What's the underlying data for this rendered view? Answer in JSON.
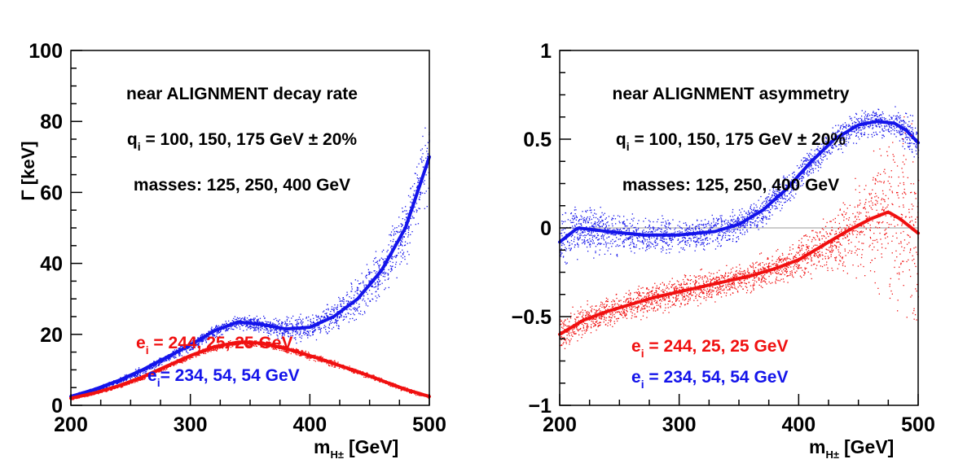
{
  "figure": {
    "colors": {
      "red": "#f01010",
      "blue": "#1414ea",
      "axis": "#000000",
      "zero_line": "#9a9a9a"
    }
  },
  "chart_data": [
    {
      "type": "scatter",
      "panel": "left",
      "title": "",
      "xlabel": "m",
      "xlabel_sub": "H±",
      "xlabel_unit": "[GeV]",
      "ylabel": "Γ [keV]",
      "xlim": [
        200,
        500
      ],
      "ylim": [
        0,
        100
      ],
      "xticks": [
        200,
        300,
        400,
        500
      ],
      "yticks": [
        0,
        20,
        40,
        60,
        80,
        100
      ],
      "x_tick_labels": [
        "200",
        "300",
        "400",
        "500"
      ],
      "y_tick_labels": [
        "0",
        "20",
        "40",
        "60",
        "80",
        "100"
      ],
      "annotations": {
        "line1": "near ALIGNMENT decay rate",
        "line2_pre": "q",
        "line2_sub": "i",
        "line2_post": " = 100, 150, 175 GeV ± 20%",
        "line3": "masses: 125, 250, 400 GeV"
      },
      "legend": [
        {
          "pre": "e",
          "sub": "i",
          "post": " = 244, 25, 25 GeV",
          "color": "red"
        },
        {
          "pre": "e",
          "sub": "i",
          "post": "= 234, 54, 54 GeV",
          "color": "blue"
        }
      ],
      "series": [
        {
          "name": "e_i = 234, 54, 54 GeV",
          "color": "blue",
          "x": [
            200,
            220,
            240,
            260,
            280,
            300,
            320,
            340,
            360,
            380,
            400,
            420,
            440,
            460,
            480,
            500
          ],
          "y": [
            2.5,
            4.5,
            7.0,
            10.0,
            13.5,
            17.0,
            21.0,
            23.5,
            22.8,
            21.5,
            22.0,
            25.0,
            30.0,
            38.0,
            50.0,
            70.0
          ],
          "spread": [
            0.3,
            0.5,
            0.7,
            0.9,
            1.0,
            1.2,
            1.3,
            1.6,
            2.0,
            2.5,
            3.0,
            3.8,
            4.8,
            6.0,
            7.5,
            10.0
          ]
        },
        {
          "name": "e_i = 244, 25, 25 GeV",
          "color": "red",
          "x": [
            200,
            220,
            240,
            260,
            280,
            300,
            320,
            340,
            360,
            380,
            400,
            420,
            440,
            460,
            480,
            500
          ],
          "y": [
            2.0,
            3.5,
            5.5,
            8.0,
            11.0,
            14.0,
            16.5,
            17.8,
            17.5,
            16.0,
            14.0,
            11.8,
            9.5,
            7.0,
            4.5,
            2.5
          ],
          "spread": [
            0.3,
            0.3,
            0.4,
            0.5,
            0.6,
            0.6,
            0.7,
            0.8,
            0.8,
            0.8,
            0.8,
            0.7,
            0.6,
            0.5,
            0.5,
            0.4
          ]
        }
      ]
    },
    {
      "type": "scatter",
      "panel": "right",
      "title": "",
      "xlabel": "m",
      "xlabel_sub": "H±",
      "xlabel_unit": "[GeV]",
      "ylabel": "",
      "xlim": [
        200,
        500
      ],
      "ylim": [
        -1,
        1
      ],
      "xticks": [
        200,
        300,
        400,
        500
      ],
      "yticks": [
        -1,
        -0.5,
        0,
        0.5,
        1
      ],
      "x_tick_labels": [
        "200",
        "300",
        "400",
        "500"
      ],
      "y_tick_labels": [
        "−1",
        "−0.5",
        "0",
        "0.5",
        "1"
      ],
      "annotations": {
        "line1": "near ALIGNMENT asymmetry",
        "line2_pre": "q",
        "line2_sub": "i",
        "line2_post": " = 100, 150, 175 GeV ± 20%",
        "line3": "masses: 125, 250, 400 GeV"
      },
      "legend": [
        {
          "pre": "e",
          "sub": "i",
          "post": " = 244, 25, 25 GeV",
          "color": "red"
        },
        {
          "pre": "e",
          "sub": "i",
          "post": " = 234, 54, 54 GeV",
          "color": "blue"
        }
      ],
      "series": [
        {
          "name": "e_i = 234, 54, 54 GeV",
          "color": "blue",
          "x": [
            200,
            215,
            240,
            270,
            300,
            330,
            350,
            370,
            390,
            410,
            430,
            450,
            465,
            480,
            490,
            500
          ],
          "y": [
            -0.08,
            0.0,
            -0.02,
            -0.04,
            -0.04,
            -0.02,
            0.02,
            0.1,
            0.22,
            0.37,
            0.5,
            0.58,
            0.6,
            0.59,
            0.55,
            0.48
          ],
          "spread": [
            0.12,
            0.12,
            0.1,
            0.08,
            0.07,
            0.07,
            0.07,
            0.07,
            0.07,
            0.07,
            0.07,
            0.07,
            0.07,
            0.07,
            0.08,
            0.09
          ]
        },
        {
          "name": "e_i = 244, 25, 25 GeV",
          "color": "red",
          "x": [
            200,
            220,
            240,
            260,
            280,
            300,
            320,
            340,
            360,
            380,
            400,
            420,
            440,
            460,
            475,
            485,
            500
          ],
          "y": [
            -0.6,
            -0.52,
            -0.47,
            -0.43,
            -0.39,
            -0.36,
            -0.33,
            -0.3,
            -0.27,
            -0.23,
            -0.18,
            -0.1,
            -0.02,
            0.05,
            0.09,
            0.05,
            -0.03
          ],
          "spread": [
            0.08,
            0.08,
            0.07,
            0.07,
            0.07,
            0.07,
            0.07,
            0.07,
            0.07,
            0.08,
            0.09,
            0.12,
            0.18,
            0.26,
            0.35,
            0.42,
            0.5
          ]
        }
      ]
    }
  ]
}
